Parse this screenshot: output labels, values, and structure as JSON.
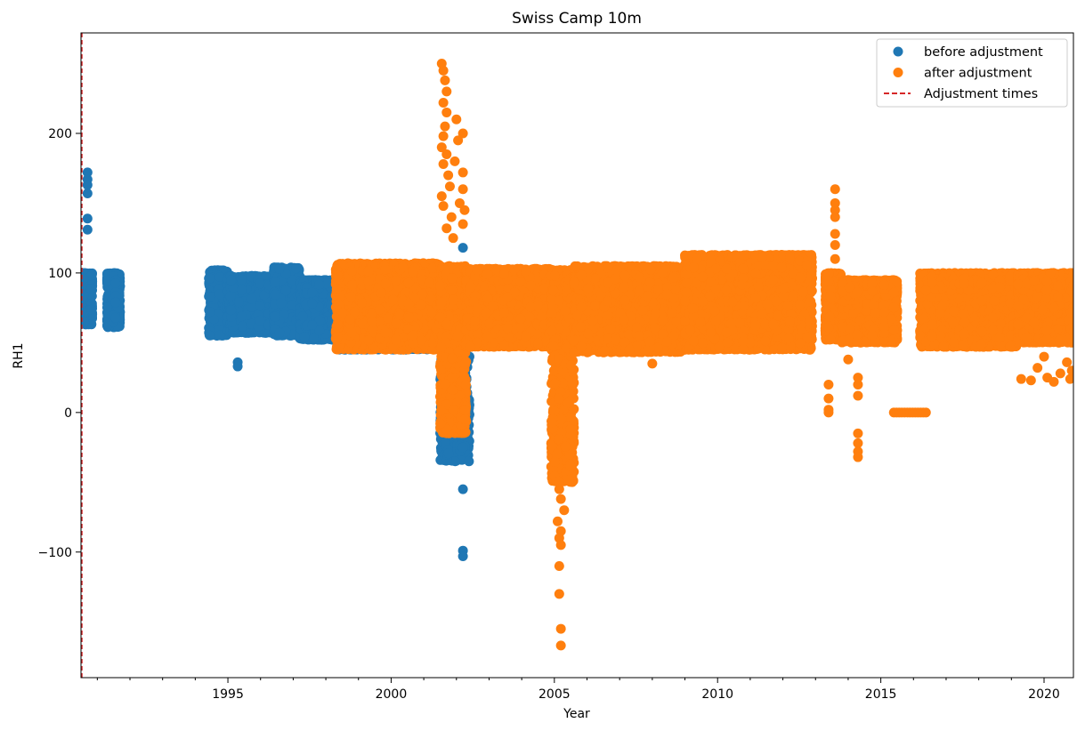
{
  "chart_data": {
    "type": "scatter",
    "title": "Swiss Camp 10m",
    "xlabel": "Year",
    "ylabel": "RH1",
    "xlim": [
      1990.5,
      2020.9
    ],
    "ylim": [
      -190,
      272
    ],
    "x_ticks": [
      1995,
      2000,
      2005,
      2010,
      2015,
      2020
    ],
    "y_ticks": [
      -100,
      0,
      100,
      200
    ],
    "grid": false,
    "legend_position": "top-right",
    "legend": [
      {
        "label": "before adjustment",
        "marker": "circle",
        "color": "#1f77b4"
      },
      {
        "label": "after adjustment",
        "marker": "circle",
        "color": "#ff7f0e"
      },
      {
        "label": "Adjustment times",
        "marker": "dashed-line",
        "color": "#d62728"
      }
    ],
    "adjustment_times": [
      1990.5
    ],
    "series": [
      {
        "name": "before adjustment",
        "color": "#1f77b4",
        "bands": [
          {
            "x0": 1990.5,
            "x1": 1990.85,
            "lo": 63,
            "hi": 100
          },
          {
            "x0": 1991.3,
            "x1": 1991.7,
            "lo": 61,
            "hi": 100
          },
          {
            "x0": 1994.4,
            "x1": 1995.0,
            "lo": 55,
            "hi": 102
          },
          {
            "x0": 1995.0,
            "x1": 1996.4,
            "lo": 57,
            "hi": 98
          },
          {
            "x0": 1996.4,
            "x1": 1997.2,
            "lo": 55,
            "hi": 104
          },
          {
            "x0": 1997.2,
            "x1": 1998.4,
            "lo": 52,
            "hi": 95
          },
          {
            "x0": 1998.4,
            "x1": 2001.5,
            "lo": 45,
            "hi": 96
          },
          {
            "x0": 2001.5,
            "x1": 2002.4,
            "lo": -35,
            "hi": 100
          },
          {
            "x0": 2002.4,
            "x1": 2005.0,
            "lo": 52,
            "hi": 98
          }
        ],
        "points": [
          [
            1990.7,
            172
          ],
          [
            1990.7,
            167
          ],
          [
            1990.7,
            163
          ],
          [
            1990.7,
            157
          ],
          [
            1990.7,
            139
          ],
          [
            1990.7,
            131
          ],
          [
            1995.3,
            36
          ],
          [
            1995.3,
            33
          ],
          [
            2000.3,
            45
          ],
          [
            2000.3,
            56
          ],
          [
            2002.2,
            118
          ],
          [
            2002.2,
            -55
          ],
          [
            2002.2,
            -99
          ],
          [
            2002.2,
            -103
          ],
          [
            2002.2,
            -25
          ],
          [
            2001.9,
            -16
          ],
          [
            2002.4,
            40
          ],
          [
            2003.5,
            55
          ]
        ]
      },
      {
        "name": "after adjustment",
        "color": "#ff7f0e",
        "bands": [
          {
            "x0": 1998.3,
            "x1": 2001.5,
            "lo": 45,
            "hi": 107
          },
          {
            "x0": 2001.5,
            "x1": 2002.3,
            "lo": -15,
            "hi": 105
          },
          {
            "x0": 2002.3,
            "x1": 2004.9,
            "lo": 47,
            "hi": 103
          },
          {
            "x0": 2004.9,
            "x1": 2005.6,
            "lo": -50,
            "hi": 103
          },
          {
            "x0": 2005.6,
            "x1": 2009.0,
            "lo": 43,
            "hi": 105
          },
          {
            "x0": 2009.0,
            "x1": 2012.9,
            "lo": 45,
            "hi": 113
          },
          {
            "x0": 2013.3,
            "x1": 2013.8,
            "lo": 52,
            "hi": 100
          },
          {
            "x0": 2013.8,
            "x1": 2015.5,
            "lo": 50,
            "hi": 95
          },
          {
            "x0": 2016.2,
            "x1": 2019.2,
            "lo": 47,
            "hi": 100
          },
          {
            "x0": 2019.2,
            "x1": 2020.9,
            "lo": 50,
            "hi": 100
          }
        ],
        "points": [
          [
            2001.55,
            250
          ],
          [
            2001.6,
            245
          ],
          [
            2001.65,
            238
          ],
          [
            2001.7,
            230
          ],
          [
            2001.6,
            222
          ],
          [
            2001.7,
            215
          ],
          [
            2001.65,
            205
          ],
          [
            2001.6,
            198
          ],
          [
            2001.55,
            190
          ],
          [
            2001.7,
            185
          ],
          [
            2001.6,
            178
          ],
          [
            2001.75,
            170
          ],
          [
            2001.8,
            162
          ],
          [
            2001.55,
            155
          ],
          [
            2001.6,
            148
          ],
          [
            2001.85,
            140
          ],
          [
            2001.7,
            132
          ],
          [
            2001.9,
            125
          ],
          [
            2002.0,
            210
          ],
          [
            2002.05,
            195
          ],
          [
            2002.2,
            200
          ],
          [
            2002.2,
            172
          ],
          [
            2002.2,
            160
          ],
          [
            2002.1,
            150
          ],
          [
            2002.25,
            145
          ],
          [
            2002.2,
            135
          ],
          [
            2001.95,
            180
          ],
          [
            2005.15,
            -55
          ],
          [
            2005.2,
            -62
          ],
          [
            2005.3,
            -70
          ],
          [
            2005.1,
            -78
          ],
          [
            2005.2,
            -85
          ],
          [
            2005.15,
            -90
          ],
          [
            2005.2,
            -95
          ],
          [
            2005.15,
            -110
          ],
          [
            2005.15,
            -130
          ],
          [
            2005.2,
            -155
          ],
          [
            2005.2,
            -167
          ],
          [
            2007.3,
            45
          ],
          [
            2008.0,
            35
          ],
          [
            2010.3,
            50
          ],
          [
            2014.0,
            38
          ],
          [
            2013.4,
            20
          ],
          [
            2013.4,
            10
          ],
          [
            2013.4,
            2
          ],
          [
            2013.4,
            0
          ],
          [
            2013.6,
            160
          ],
          [
            2013.6,
            150
          ],
          [
            2013.6,
            145
          ],
          [
            2013.6,
            140
          ],
          [
            2013.6,
            128
          ],
          [
            2013.6,
            120
          ],
          [
            2013.6,
            110
          ],
          [
            2014.3,
            25
          ],
          [
            2014.3,
            20
          ],
          [
            2014.3,
            12
          ],
          [
            2014.3,
            -15
          ],
          [
            2014.3,
            -22
          ],
          [
            2014.3,
            -28
          ],
          [
            2014.3,
            -32
          ],
          [
            2019.3,
            24
          ],
          [
            2019.6,
            23
          ],
          [
            2019.8,
            32
          ],
          [
            2020.0,
            40
          ],
          [
            2020.1,
            25
          ],
          [
            2020.3,
            22
          ],
          [
            2020.5,
            28
          ],
          [
            2020.7,
            36
          ],
          [
            2020.8,
            24
          ],
          [
            2020.85,
            30
          ]
        ],
        "flat_segments": [
          {
            "x0": 2015.4,
            "x1": 2016.4,
            "y": 0
          }
        ]
      }
    ]
  }
}
